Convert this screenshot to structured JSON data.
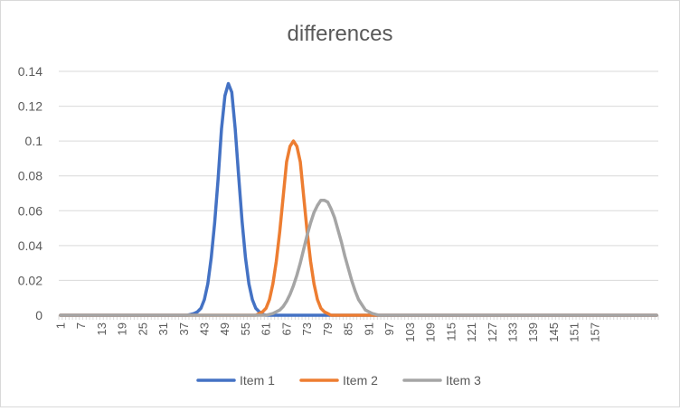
{
  "chart_data": {
    "type": "line",
    "title": "differences",
    "xlabel": "",
    "ylabel": "",
    "x": {
      "start": 1,
      "end": 175,
      "step": 1
    },
    "x_tick_labels": [
      "1",
      "7",
      "13",
      "19",
      "25",
      "31",
      "37",
      "43",
      "49",
      "55",
      "61",
      "67",
      "73",
      "79",
      "85",
      "91",
      "97",
      "103",
      "109",
      "115",
      "121",
      "127",
      "133",
      "139",
      "145",
      "151",
      "157"
    ],
    "y_tick_labels": [
      "0",
      "0.02",
      "0.04",
      "0.06",
      "0.08",
      "0.1",
      "0.12",
      "0.14"
    ],
    "ylim": [
      0,
      0.14
    ],
    "grid": "horizontal",
    "legend": "bottom",
    "series": [
      {
        "name": "Item 1",
        "color": "#4472C4",
        "values_nonzero": {
          "39": 0.0005,
          "40": 0.001,
          "41": 0.002,
          "42": 0.004,
          "43": 0.009,
          "44": 0.018,
          "45": 0.033,
          "46": 0.053,
          "47": 0.078,
          "48": 0.107,
          "49": 0.126,
          "50": 0.133,
          "51": 0.128,
          "52": 0.107,
          "53": 0.08,
          "54": 0.054,
          "55": 0.033,
          "56": 0.018,
          "57": 0.009,
          "58": 0.004,
          "59": 0.002,
          "60": 0.0005
        }
      },
      {
        "name": "Item 2",
        "color": "#ED7D31",
        "values_nonzero": {
          "59": 0.001,
          "60": 0.002,
          "61": 0.004,
          "62": 0.009,
          "63": 0.018,
          "64": 0.031,
          "65": 0.048,
          "66": 0.068,
          "67": 0.088,
          "68": 0.097,
          "69": 0.1,
          "70": 0.097,
          "71": 0.088,
          "72": 0.068,
          "73": 0.048,
          "74": 0.031,
          "75": 0.018,
          "76": 0.009,
          "77": 0.004,
          "78": 0.002,
          "79": 0.001
        }
      },
      {
        "name": "Item 3",
        "color": "#A5A5A5",
        "values_nonzero": {
          "62": 0.0005,
          "63": 0.001,
          "64": 0.002,
          "65": 0.003,
          "66": 0.005,
          "67": 0.008,
          "68": 0.012,
          "69": 0.017,
          "70": 0.023,
          "71": 0.03,
          "72": 0.038,
          "73": 0.046,
          "74": 0.053,
          "75": 0.059,
          "76": 0.063,
          "77": 0.066,
          "78": 0.066,
          "79": 0.065,
          "80": 0.061,
          "81": 0.056,
          "82": 0.049,
          "83": 0.042,
          "84": 0.034,
          "85": 0.027,
          "86": 0.02,
          "87": 0.014,
          "88": 0.009,
          "89": 0.006,
          "90": 0.003,
          "91": 0.002,
          "92": 0.001,
          "93": 0.0005
        }
      }
    ]
  }
}
